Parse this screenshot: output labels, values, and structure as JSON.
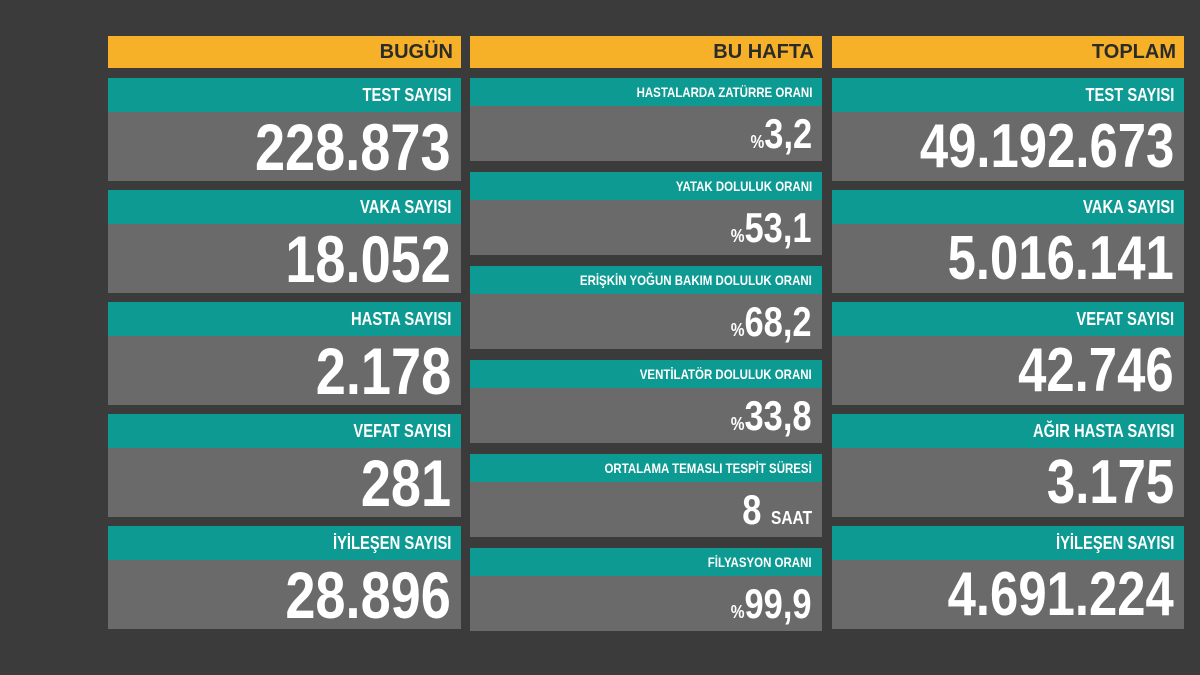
{
  "columns": [
    {
      "title": "BUGÜN",
      "cards": [
        {
          "label": "TEST SAYISI",
          "value": "228.873"
        },
        {
          "label": "VAKA SAYISI",
          "value": "18.052"
        },
        {
          "label": "HASTA SAYISI",
          "value": "2.178"
        },
        {
          "label": "VEFAT SAYISI",
          "value": "281"
        },
        {
          "label": "İYİLEŞEN SAYISI",
          "value": "28.896"
        }
      ]
    },
    {
      "title": "BU HAFTA",
      "cards": [
        {
          "label": "HASTALARDA ZATÜRRE ORANI",
          "prefix": "%",
          "value": "3,2"
        },
        {
          "label": "YATAK DOLULUK ORANI",
          "prefix": "%",
          "value": "53,1"
        },
        {
          "label": "ERİŞKİN YOĞUN BAKIM DOLULUK ORANI",
          "prefix": "%",
          "value": "68,2"
        },
        {
          "label": "VENTİLATÖR DOLULUK ORANI",
          "prefix": "%",
          "value": "33,8"
        },
        {
          "label": "ORTALAMA TEMASLI TESPİT SÜRESİ",
          "value": "8",
          "suffix": "SAAT"
        },
        {
          "label": "FİLYASYON ORANI",
          "prefix": "%",
          "value": "99,9"
        }
      ]
    },
    {
      "title": "TOPLAM",
      "cards": [
        {
          "label": "TEST SAYISI",
          "value": "49.192.673"
        },
        {
          "label": "VAKA SAYISI",
          "value": "5.016.141"
        },
        {
          "label": "VEFAT SAYISI",
          "value": "42.746"
        },
        {
          "label": "AĞIR HASTA SAYISI",
          "value": "3.175"
        },
        {
          "label": "İYİLEŞEN SAYISI",
          "value": "4.691.224"
        }
      ]
    }
  ]
}
